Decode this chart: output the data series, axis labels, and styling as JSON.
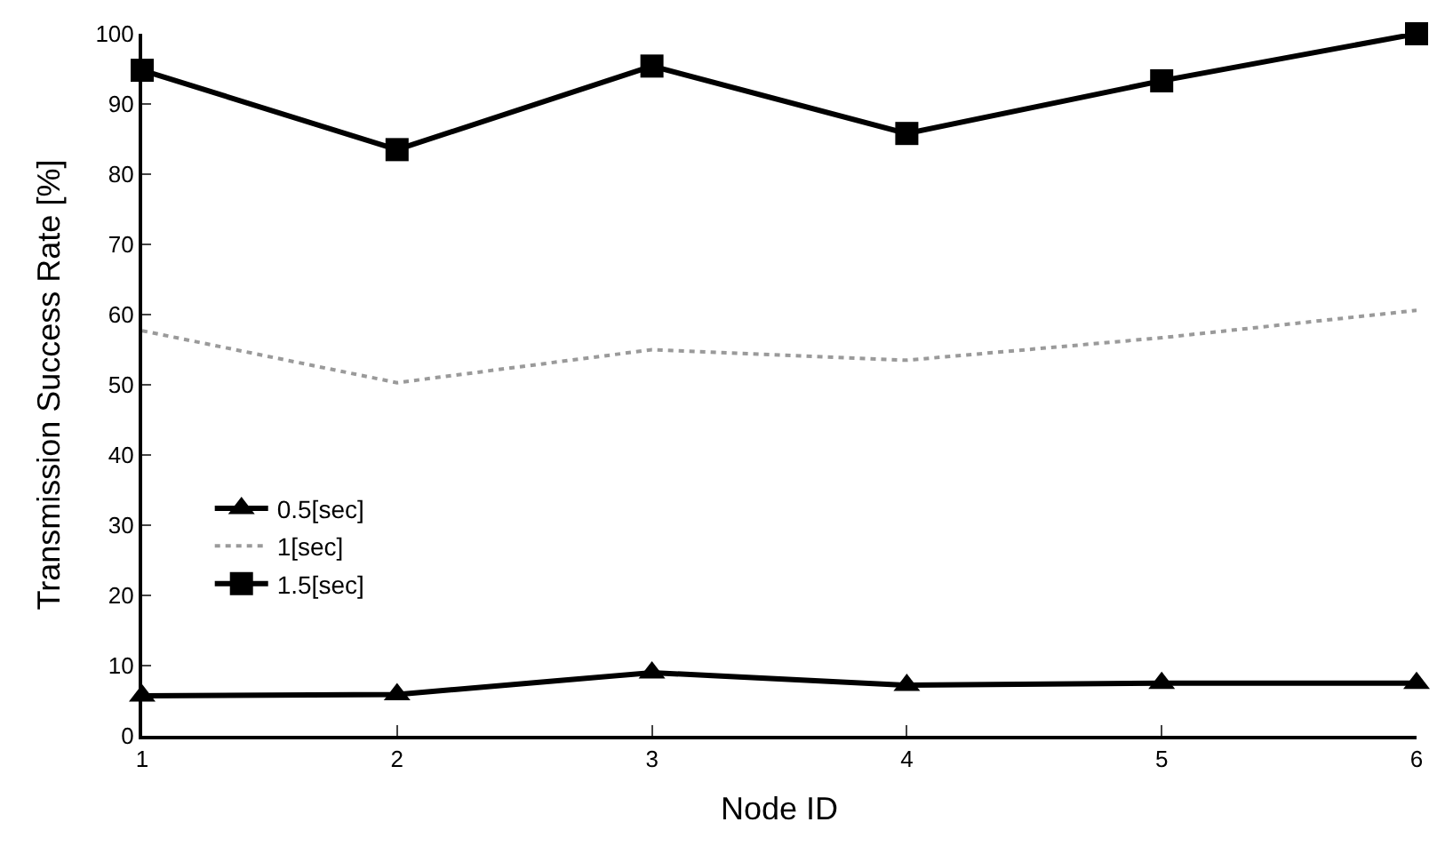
{
  "chart_data": {
    "type": "line",
    "xlabel": "Node ID",
    "ylabel": "Transmission Success Rate [%]",
    "x": [
      1,
      2,
      3,
      4,
      5,
      6
    ],
    "series": [
      {
        "name": "0.5[sec]",
        "color": "#000000",
        "marker": "triangle",
        "line_style": "solid",
        "values": [
          5.7,
          5.9,
          9,
          7.2,
          7.5,
          7.5
        ]
      },
      {
        "name": "1[sec]",
        "color": "#9a9a9a",
        "marker": "none",
        "line_style": "dotted",
        "values": [
          57.7,
          50.3,
          55,
          53.5,
          56.7,
          60.6
        ]
      },
      {
        "name": "1.5[sec]",
        "color": "#000000",
        "marker": "square",
        "line_style": "solid",
        "values": [
          94.8,
          83.5,
          95.4,
          85.8,
          93.3,
          100
        ]
      }
    ],
    "xlim": [
      1,
      6
    ],
    "xticks": [
      1,
      2,
      3,
      4,
      5,
      6
    ],
    "ylim": [
      0,
      100
    ],
    "yticks": [
      0,
      10,
      20,
      30,
      40,
      50,
      60,
      70,
      80,
      90,
      100
    ],
    "legend": "left"
  }
}
